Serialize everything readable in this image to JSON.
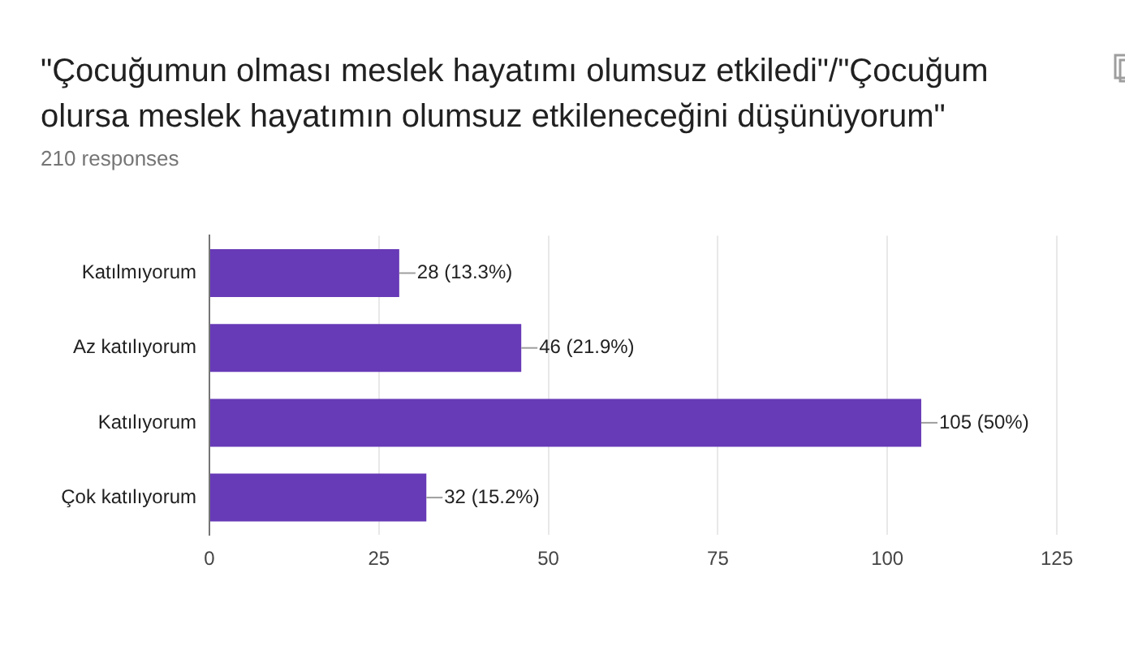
{
  "chart_data": {
    "type": "bar",
    "orientation": "horizontal",
    "title": "\"Çocuğumun olması meslek hayatımı olumsuz etkiledi\"/\"Çocuğum olursa meslek hayatımın olumsuz etkileneceğini düşünüyorum\"",
    "subtitle": "210 responses",
    "categories": [
      "Katılmıyorum",
      "Az katılıyorum",
      "Katılıyorum",
      "Çok katılıyorum"
    ],
    "values": [
      28,
      46,
      105,
      32
    ],
    "value_labels": [
      "28 (13.3%)",
      "46 (21.9%)",
      "105 (50%)",
      "32 (15.2%)"
    ],
    "color": "#673ab7",
    "xlim": [
      0,
      125
    ],
    "xticks": [
      0,
      25,
      50,
      75,
      100,
      125
    ],
    "grid": "x",
    "legend": false
  }
}
